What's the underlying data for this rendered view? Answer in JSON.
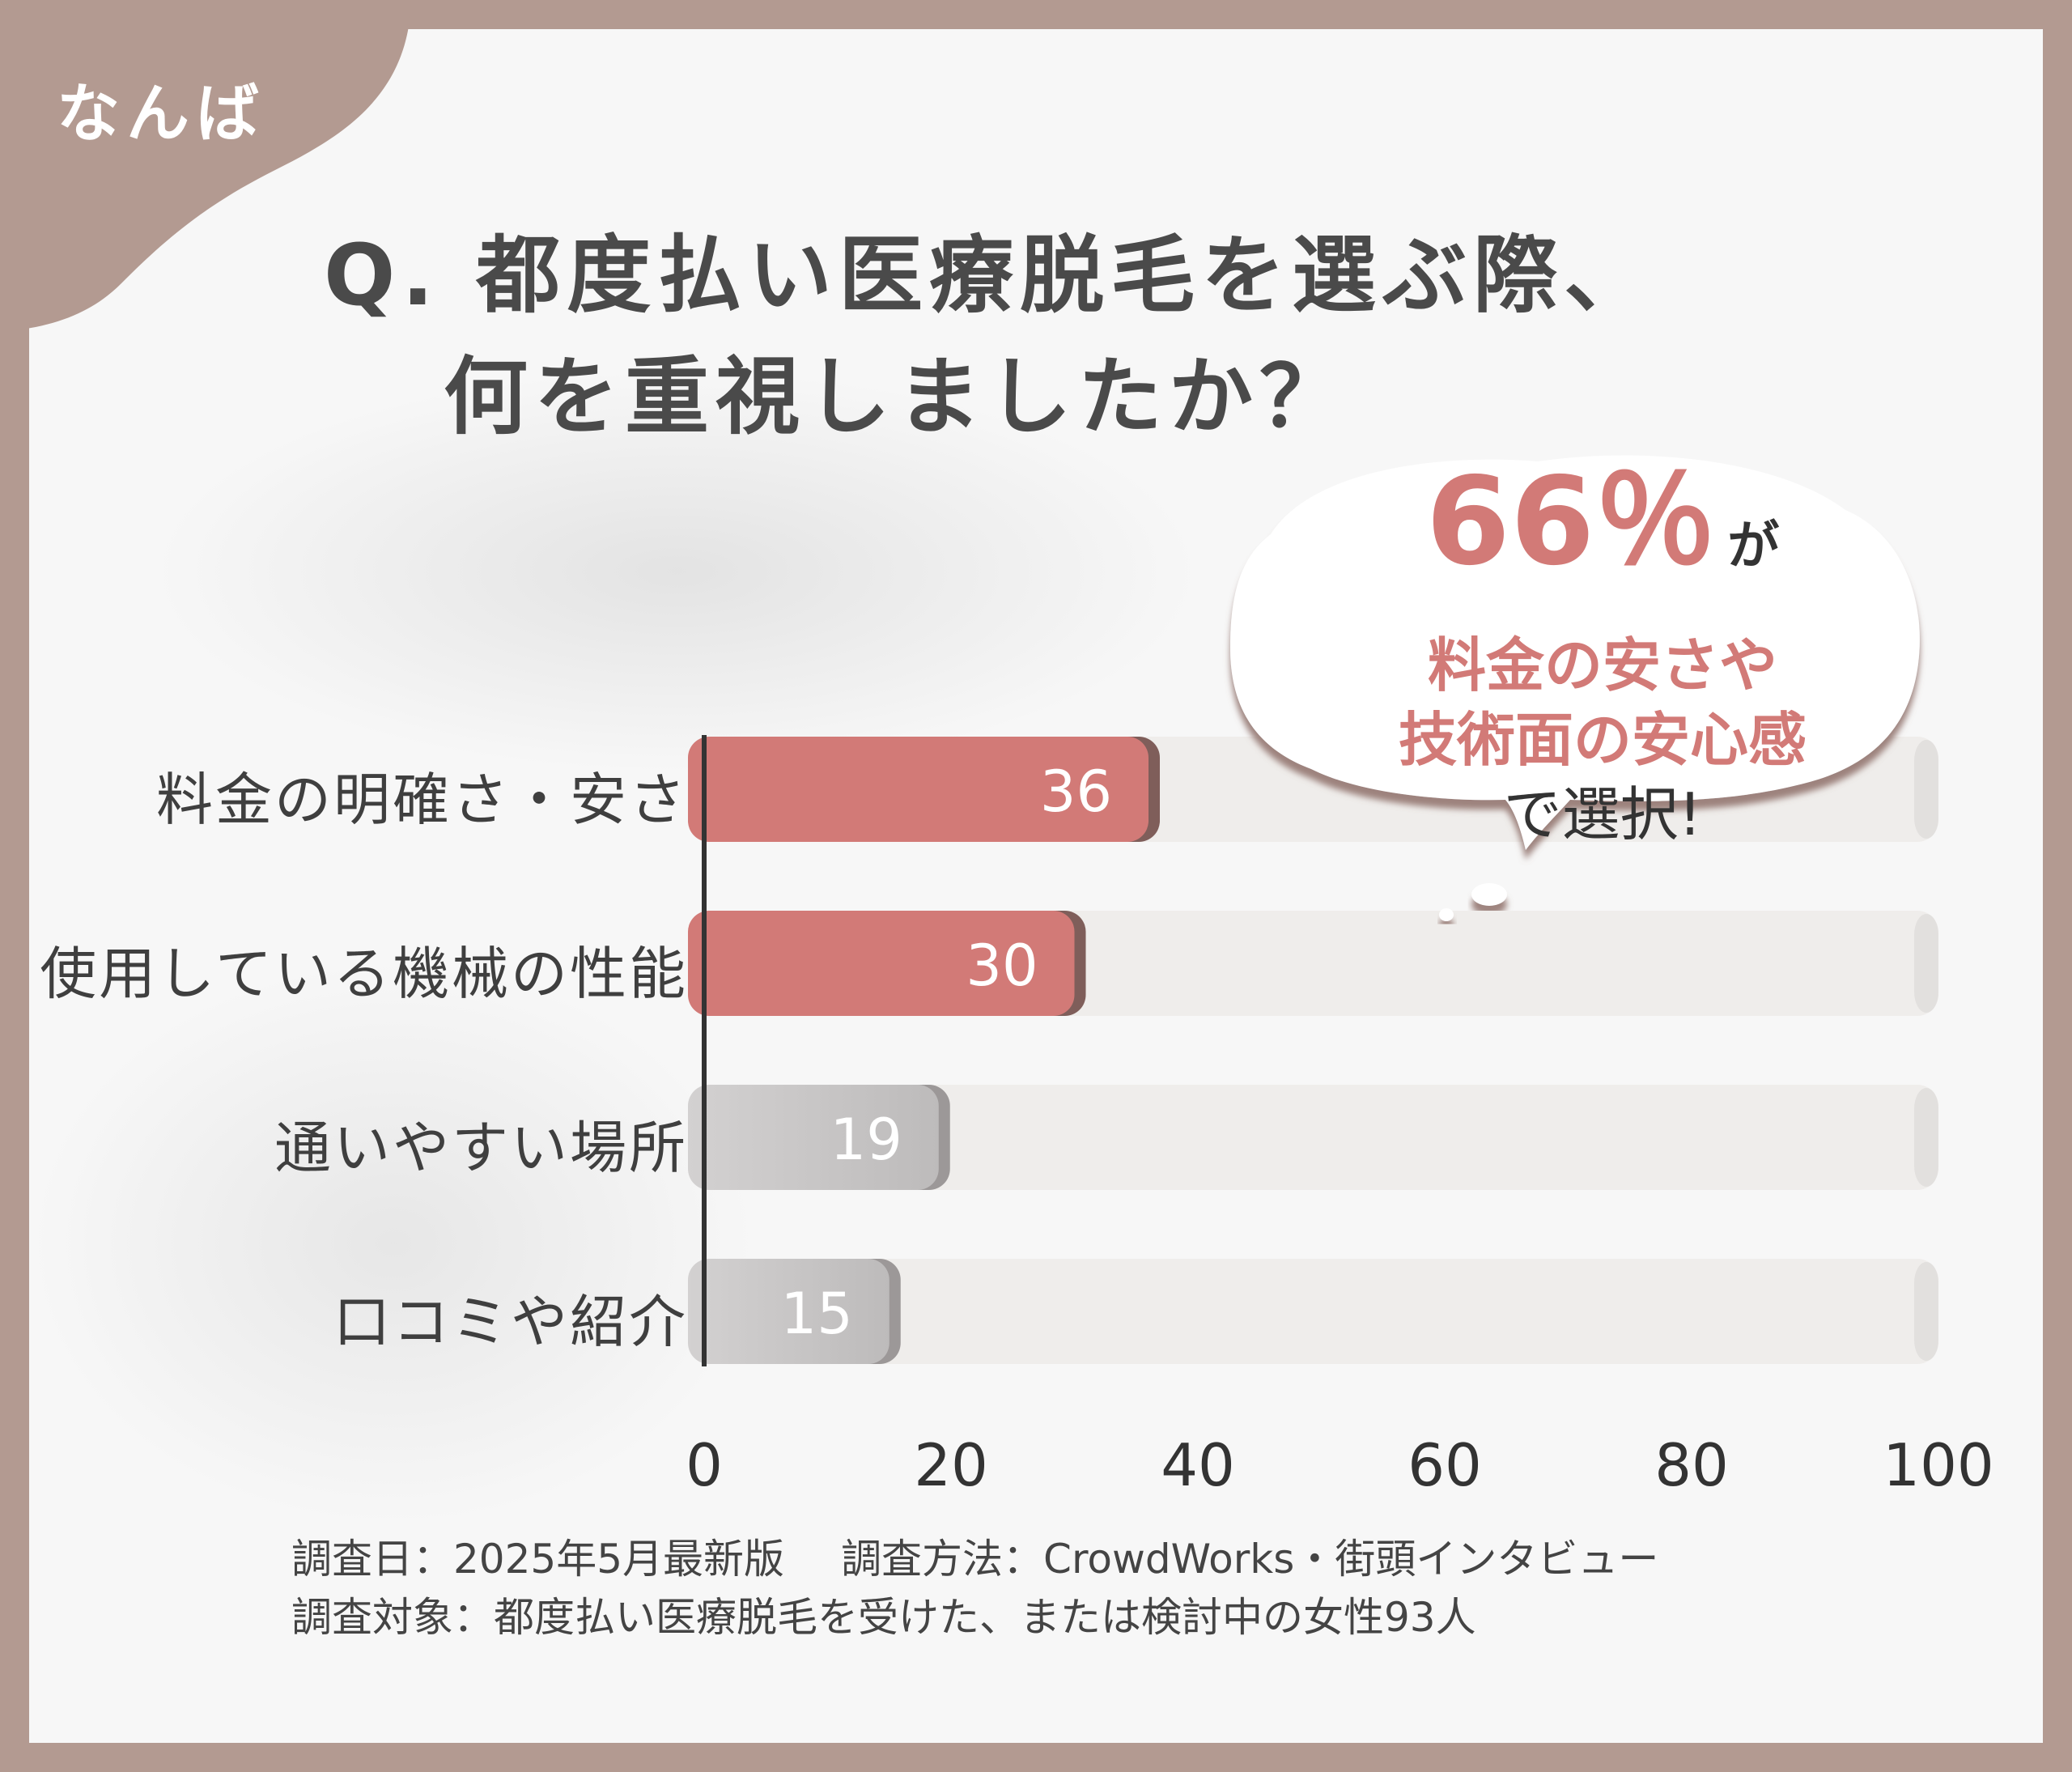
{
  "corner_label": "なんば",
  "title": {
    "line1": "Q. 都度払い医療脱毛を選ぶ際、",
    "line2": "何を重視しましたか？"
  },
  "callout": {
    "percent": "66％",
    "suffix": "が",
    "line2": "料金の安さや",
    "line3": "技術面の安心感",
    "line4": "で選択!"
  },
  "chart_data": {
    "type": "bar",
    "orientation": "horizontal",
    "categories": [
      "料金の明確さ・安さ",
      "使用している機械の性能",
      "通いやすい場所",
      "口コミや紹介"
    ],
    "values": [
      36,
      30,
      19,
      15
    ],
    "highlighted": [
      true,
      true,
      false,
      false
    ],
    "xlim": [
      0,
      100
    ],
    "xticks": [
      0,
      20,
      40,
      60,
      80,
      100
    ],
    "grid": false,
    "colors": {
      "highlight": "#d27a77",
      "highlight_edge": "#7f5e5a",
      "normal": [
        "#bdbbbb",
        "#d3d1d1"
      ],
      "normal_edge": "#9c9898",
      "track": "#efedeb",
      "axis": "#333333"
    }
  },
  "footer": {
    "date": "調査日：2025年5月最新版",
    "method": "調査方法：CrowdWorks・街頭インタビュー",
    "target": "調査対象：都度払い医療脱毛を受けた、または検討中の女性93人"
  }
}
